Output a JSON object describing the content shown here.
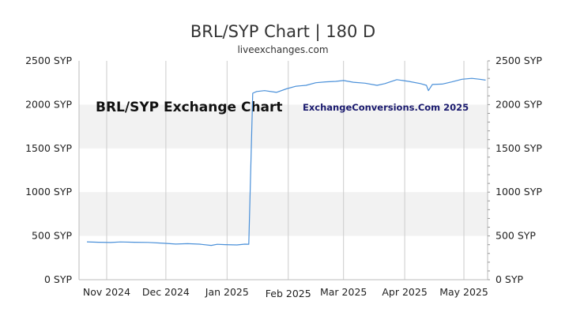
{
  "page": {
    "title": "BRL/SYP Chart | 180 D",
    "subtitle": "liveexchanges.com",
    "watermark_left": "BRL/SYP Exchange Chart",
    "watermark_right": "ExchangeConversions.Com 2025"
  },
  "colors": {
    "line": "#4a90d9",
    "band": "#f2f2f2",
    "grid": "#cccccc",
    "axis": "#bbbbbb"
  },
  "chart_data": {
    "type": "line",
    "title": "BRL/SYP Chart | 180 D",
    "xlabel": "",
    "ylabel": "",
    "ylim": [
      0,
      2500
    ],
    "yticks": [
      0,
      500,
      1000,
      1500,
      2000,
      2500
    ],
    "ytick_labels": [
      "0 SYP",
      "500 SYP",
      "1000 SYP",
      "1500 SYP",
      "2000 SYP",
      "2500 SYP"
    ],
    "xlim": [
      "2024-10-18",
      "2025-05-13"
    ],
    "xticks": [
      "2024-11-01",
      "2024-12-01",
      "2025-01-01",
      "2025-02-01",
      "2025-03-01",
      "2025-04-01",
      "2025-05-01"
    ],
    "xtick_labels": [
      "Nov 2024",
      "Dec 2024",
      "Jan 2025",
      "Feb 2025",
      "Mar 2025",
      "Apr 2025",
      "May 2025"
    ],
    "grid": "vertical lines at month ticks, alternating horizontal bands",
    "series": [
      {
        "x": [
          "2024-10-22",
          "2024-10-28",
          "2024-11-03",
          "2024-11-08",
          "2024-11-15",
          "2024-11-22",
          "2024-11-30",
          "2024-12-06",
          "2024-12-12",
          "2024-12-18",
          "2024-12-24",
          "2024-12-27",
          "2024-12-31",
          "2025-01-06",
          "2025-01-10",
          "2025-01-12",
          "2025-01-14",
          "2025-01-16",
          "2025-01-20",
          "2025-01-26",
          "2025-01-31",
          "2025-02-05",
          "2025-02-10",
          "2025-02-15",
          "2025-02-20",
          "2025-02-25",
          "2025-03-01",
          "2025-03-06",
          "2025-03-12",
          "2025-03-18",
          "2025-03-22",
          "2025-03-28",
          "2025-04-03",
          "2025-04-09",
          "2025-04-12",
          "2025-04-13",
          "2025-04-15",
          "2025-04-20",
          "2025-04-25",
          "2025-04-30",
          "2025-05-05",
          "2025-05-09",
          "2025-05-12"
        ],
        "y": [
          432,
          428,
          425,
          431,
          428,
          426,
          416,
          407,
          412,
          406,
          392,
          404,
          401,
          397,
          406,
          405,
          2130,
          2150,
          2160,
          2140,
          2180,
          2210,
          2220,
          2250,
          2260,
          2265,
          2275,
          2255,
          2245,
          2220,
          2240,
          2285,
          2265,
          2240,
          2220,
          2160,
          2230,
          2235,
          2260,
          2290,
          2300,
          2290,
          2280
        ]
      }
    ]
  }
}
